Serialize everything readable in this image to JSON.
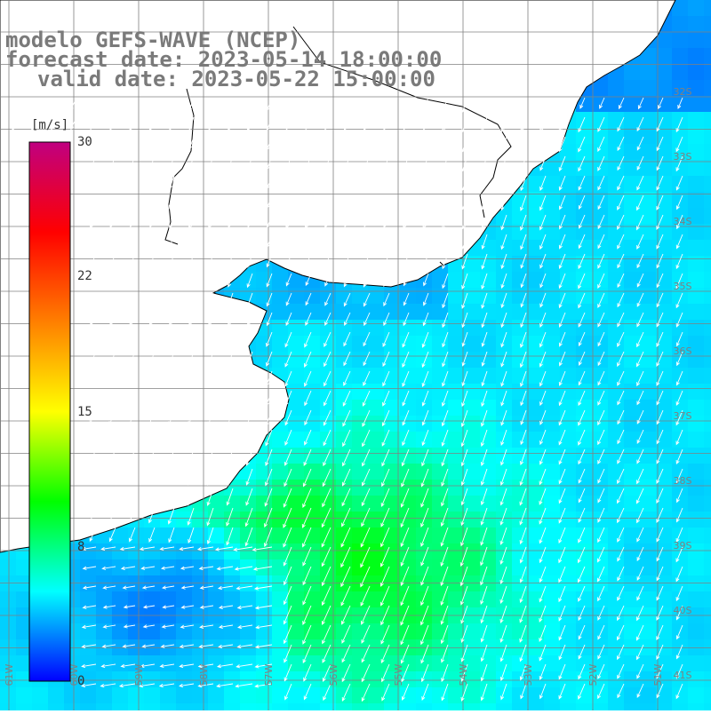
{
  "titles": {
    "model": "modelo GEFS-WAVE (NCEP)",
    "forecast": "forecast date: 2023-05-14 18:00:00",
    "valid": "valid date: 2023-05-22 15:00:00"
  },
  "colorbar": {
    "unit": "[m/s]",
    "ticks": [
      {
        "value": 30,
        "label": "30"
      },
      {
        "value": 22,
        "label": "22"
      },
      {
        "value": 15,
        "label": "15"
      },
      {
        "value": 8,
        "label": "8"
      },
      {
        "value": 0,
        "label": "0"
      }
    ],
    "stops": [
      "#0000ff",
      "#00ffff",
      "#00ff00",
      "#ffff00",
      "#ff7f00",
      "#ff0000",
      "#c00080"
    ]
  },
  "grid": {
    "lat_labels": [
      "32S",
      "33S",
      "34S",
      "35S",
      "36S",
      "37S",
      "38S",
      "39S",
      "40S",
      "41S"
    ],
    "lon_labels": [
      "61W",
      "60W",
      "59W",
      "58W",
      "57W",
      "56W",
      "55W",
      "54W",
      "53W",
      "52W",
      "51W"
    ]
  },
  "colors": {
    "land": "#ffffff",
    "coast": "#000000",
    "grid": "#808080",
    "title": "#7a7a7a",
    "arrow": "#ffffff"
  },
  "chart_data": {
    "type": "heatmap",
    "variable": "wind speed with direction arrows",
    "unit": "[m/s]",
    "colorbar_range": [
      0,
      30
    ],
    "lat_range": [
      "32S",
      "41S"
    ],
    "lon_range": [
      "61W",
      "51W"
    ],
    "dominant_wind_direction": "from NE toward SW",
    "typical_speed_ranges": {
      "north_east_ocean": [
        6,
        8
      ],
      "central_south_band": [
        9,
        12
      ],
      "south_west_coast": [
        2,
        5
      ]
    }
  }
}
